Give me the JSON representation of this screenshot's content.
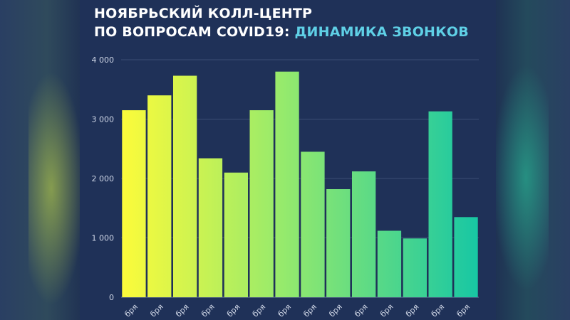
{
  "title": {
    "line1": "НОЯБРЬСКИЙ КОЛЛ-ЦЕНТР",
    "line2_part1": "ПО ВОПРОСАМ COVID19: ",
    "line2_part2": "ДИНАМИКА ЗВОНКОВ"
  },
  "colors": {
    "accent": "#5fd0e6",
    "background": "#1e2f52",
    "bar_start": "#fcfb3a",
    "bar_end": "#17c7a4"
  },
  "chart_data": {
    "type": "bar",
    "categories": [
      "бря",
      "бря",
      "бря",
      "бря",
      "бря",
      "бря",
      "бря",
      "бря",
      "бря",
      "бря",
      "бря",
      "бря",
      "бря",
      "бря"
    ],
    "values": [
      3150,
      3400,
      3730,
      2340,
      2100,
      3150,
      3800,
      2450,
      1820,
      2120,
      1120,
      990,
      3130,
      1350
    ],
    "yticks": [
      0,
      1000,
      2000,
      3000,
      4000
    ],
    "ytick_labels": [
      "0",
      "1 000",
      "2 000",
      "3 000",
      "4 000"
    ],
    "ylim": [
      0,
      4000
    ],
    "grid": true,
    "xlabel": "",
    "ylabel": ""
  }
}
